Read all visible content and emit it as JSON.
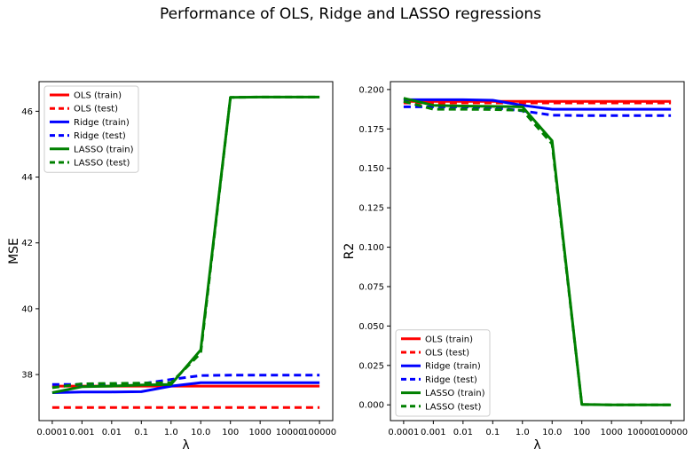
{
  "title": "Performance of OLS, Ridge and LASSO regressions",
  "series_styles": [
    {
      "name": "OLS (train)",
      "color": "#ff0000",
      "dashed": false
    },
    {
      "name": "OLS (test)",
      "color": "#ff0000",
      "dashed": true
    },
    {
      "name": "Ridge (train)",
      "color": "#0000ff",
      "dashed": false
    },
    {
      "name": "Ridge (test)",
      "color": "#0000ff",
      "dashed": true
    },
    {
      "name": "LASSO (train)",
      "color": "#008000",
      "dashed": false
    },
    {
      "name": "LASSO (test)",
      "color": "#008000",
      "dashed": true
    }
  ],
  "chart_data": [
    {
      "type": "line",
      "xlabel": "λ",
      "ylabel": "MSE",
      "categories": [
        "0.0001",
        "0.001",
        "0.01",
        "0.1",
        "1.0",
        "10.0",
        "100",
        "1000",
        "10000",
        "100000"
      ],
      "ylim": [
        36.6,
        46.9
      ],
      "yticks": [
        38,
        40,
        42,
        44,
        46
      ],
      "ytick_labels": [
        "38",
        "40",
        "42",
        "44",
        "46"
      ],
      "legend": "upper-left",
      "grid": false,
      "series": [
        {
          "name": "OLS (train)",
          "values": [
            37.65,
            37.65,
            37.65,
            37.65,
            37.65,
            37.65,
            37.65,
            37.65,
            37.65,
            37.65
          ]
        },
        {
          "name": "OLS (test)",
          "values": [
            37.0,
            37.0,
            37.0,
            37.0,
            37.0,
            37.0,
            37.0,
            37.0,
            37.0,
            37.0
          ]
        },
        {
          "name": "Ridge (train)",
          "values": [
            37.45,
            37.47,
            37.47,
            37.48,
            37.65,
            37.75,
            37.75,
            37.75,
            37.75,
            37.75
          ]
        },
        {
          "name": "Ridge (test)",
          "values": [
            37.7,
            37.7,
            37.7,
            37.72,
            37.85,
            37.97,
            37.98,
            37.98,
            37.98,
            37.98
          ]
        },
        {
          "name": "LASSO (train)",
          "values": [
            37.45,
            37.63,
            37.65,
            37.68,
            37.7,
            38.75,
            46.42,
            46.43,
            46.43,
            46.43
          ]
        },
        {
          "name": "LASSO (test)",
          "values": [
            37.6,
            37.72,
            37.73,
            37.74,
            37.75,
            38.65,
            46.42,
            46.43,
            46.43,
            46.43
          ]
        }
      ]
    },
    {
      "type": "line",
      "xlabel": "λ",
      "ylabel": "R2",
      "categories": [
        "0.0001",
        "0.001",
        "0.01",
        "0.1",
        "1.0",
        "10.0",
        "100",
        "1000",
        "10000",
        "100000"
      ],
      "ylim": [
        -0.01,
        0.205
      ],
      "yticks": [
        0.0,
        0.025,
        0.05,
        0.075,
        0.1,
        0.125,
        0.15,
        0.175,
        0.2
      ],
      "ytick_labels": [
        "0.000",
        "0.025",
        "0.050",
        "0.075",
        "0.100",
        "0.125",
        "0.150",
        "0.175",
        "0.200"
      ],
      "legend": "lower-left",
      "grid": false,
      "series": [
        {
          "name": "OLS (train)",
          "values": [
            0.1925,
            0.1925,
            0.1925,
            0.1925,
            0.1925,
            0.1925,
            0.1925,
            0.1925,
            0.1925,
            0.1925
          ]
        },
        {
          "name": "OLS (test)",
          "values": [
            0.1915,
            0.1915,
            0.1915,
            0.1915,
            0.1915,
            0.1915,
            0.1915,
            0.1915,
            0.1915,
            0.1915
          ]
        },
        {
          "name": "Ridge (train)",
          "values": [
            0.1935,
            0.1935,
            0.1935,
            0.1932,
            0.19,
            0.1875,
            0.1875,
            0.1875,
            0.1875,
            0.1875
          ]
        },
        {
          "name": "Ridge (test)",
          "values": [
            0.189,
            0.189,
            0.189,
            0.1885,
            0.1865,
            0.1837,
            0.1835,
            0.1835,
            0.1835,
            0.1835
          ]
        },
        {
          "name": "LASSO (train)",
          "values": [
            0.1945,
            0.19,
            0.1895,
            0.1893,
            0.189,
            0.1675,
            0.0003,
            0.0,
            0.0,
            0.0
          ]
        },
        {
          "name": "LASSO (test)",
          "values": [
            0.1925,
            0.1875,
            0.1875,
            0.1873,
            0.1868,
            0.1655,
            0.0003,
            0.0,
            0.0,
            0.0
          ]
        }
      ]
    }
  ]
}
